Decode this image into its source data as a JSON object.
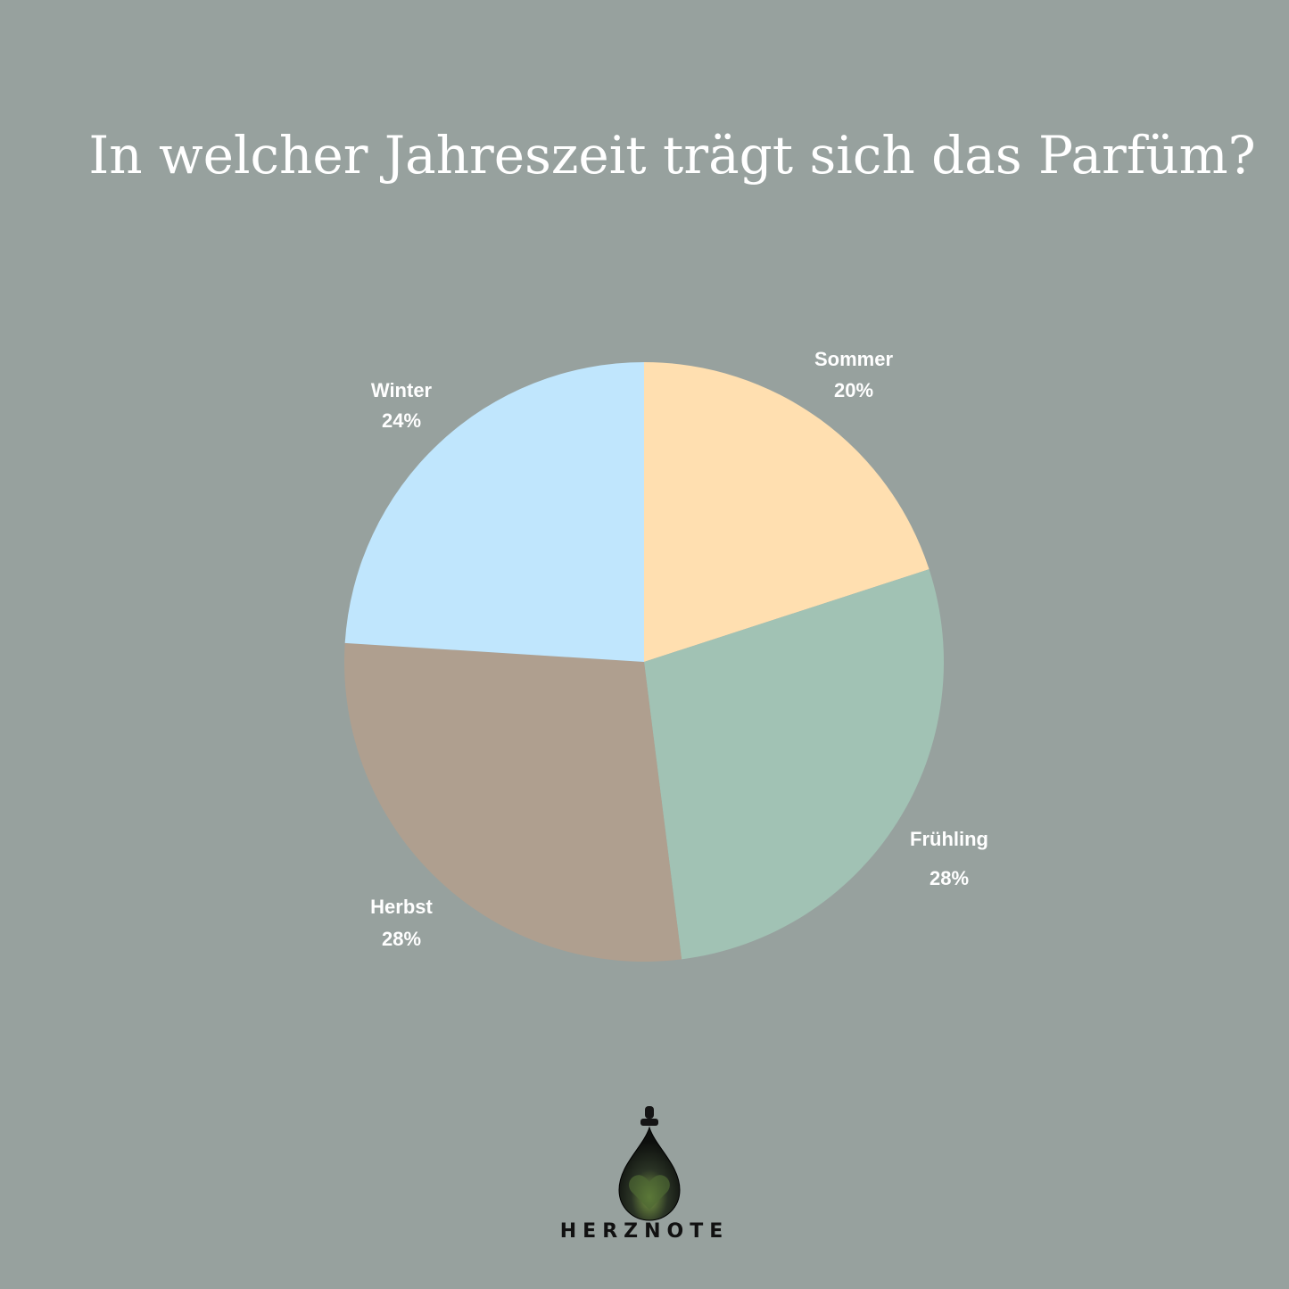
{
  "chart_data": {
    "type": "pie",
    "title": "In welcher Jahreszeit trägt sich das Parfüm?",
    "slices": [
      {
        "label": "Sommer",
        "value": 20,
        "display": "20%",
        "color": "#FFDFB0"
      },
      {
        "label": "Frühling",
        "value": 28,
        "display": "28%",
        "color": "#A1C2B4"
      },
      {
        "label": "Herbst",
        "value": 28,
        "display": "28%",
        "color": "#AF9F8F"
      },
      {
        "label": "Winter",
        "value": 24,
        "display": "24%",
        "color": "#C0E6FD"
      }
    ],
    "start": "top",
    "direction": "clockwise",
    "background": "#97A19E"
  },
  "brand": {
    "name": "HERZNOTE",
    "logo_icon": "oil-drop-heart-icon"
  }
}
